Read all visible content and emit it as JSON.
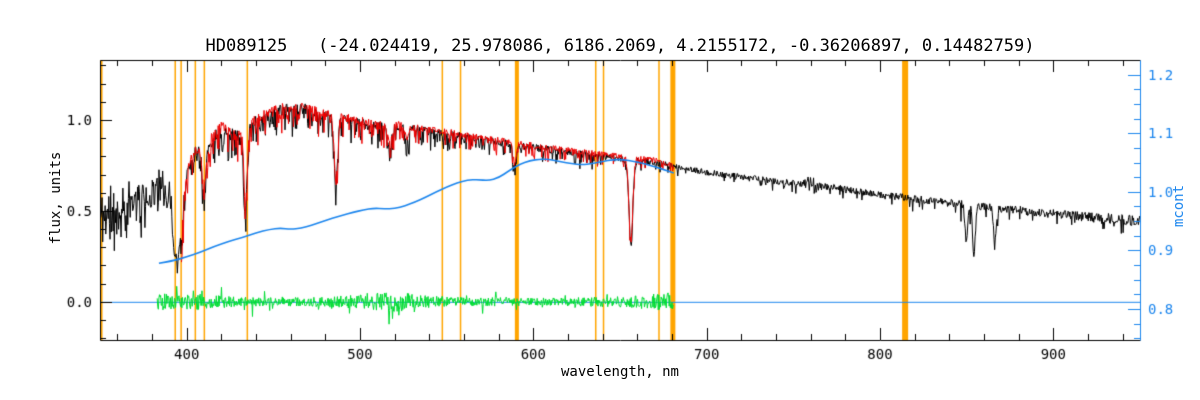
{
  "chart_data": {
    "type": "line",
    "title": "HD089125   (-24.024419, 25.978086, 6186.2069, 4.2155172, -0.36206897, 0.14482759)",
    "star_id": "HD089125",
    "params": [
      -24.024419,
      25.978086,
      6186.2069,
      4.2155172,
      -0.36206897,
      0.14482759
    ],
    "xlabel": "wavelength, nm",
    "ylabel_left": "flux, units",
    "ylabel_right": "mcont",
    "x_range": [
      350,
      950
    ],
    "y_left_range": [
      -0.21,
      1.33
    ],
    "y_right_range": [
      0.747,
      1.225
    ],
    "x_ticks": {
      "major": [
        400,
        500,
        600,
        700,
        800,
        900
      ],
      "labels": [
        "400",
        "500",
        "600",
        "700",
        "800",
        "900"
      ],
      "minor_step": 20
    },
    "y_left_ticks": {
      "major": [
        0.0,
        0.5,
        1.0
      ],
      "labels": [
        "0.0",
        "0.5",
        "1.0"
      ],
      "minor_step": 0.1
    },
    "y_right_ticks": {
      "major": [
        0.8,
        0.9,
        1.0,
        1.1,
        1.2
      ],
      "labels": [
        "0.8",
        "0.9",
        "1.0",
        "1.1",
        "1.2"
      ],
      "minor_step": 0.025
    },
    "legend": null,
    "grid": false,
    "colors": {
      "observed": "#000000",
      "fitted": "#ee0000",
      "mcont": "#1c86ee",
      "residual": "#00dd33",
      "marker": "#ffa500",
      "frame": "#000000",
      "background": "#ffffff"
    },
    "marker_lines": [
      {
        "nm": 350.6,
        "lw": 3
      },
      {
        "nm": 393.4,
        "lw": 1.5
      },
      {
        "nm": 396.8,
        "lw": 1.5
      },
      {
        "nm": 405.0,
        "lw": 1.5
      },
      {
        "nm": 410.2,
        "lw": 1.5
      },
      {
        "nm": 435.0,
        "lw": 1.5
      },
      {
        "nm": 547.5,
        "lw": 1.5
      },
      {
        "nm": 558.0,
        "lw": 1.5
      },
      {
        "nm": 590.5,
        "lw": 4
      },
      {
        "nm": 636.0,
        "lw": 1.5
      },
      {
        "nm": 640.5,
        "lw": 1.5
      },
      {
        "nm": 672.5,
        "lw": 1.5
      },
      {
        "nm": 680.5,
        "lw": 5
      },
      {
        "nm": 814.5,
        "lw": 6
      }
    ],
    "absorption_lines": [
      [
        393.4,
        0.3,
        1.3
      ],
      [
        396.8,
        0.25,
        1.2
      ],
      [
        410.2,
        0.2,
        1.0
      ],
      [
        434.0,
        0.4,
        1.0
      ],
      [
        486.1,
        0.37,
        1.0
      ],
      [
        517.2,
        0.1,
        1.2
      ],
      [
        527.0,
        0.07,
        1.0
      ],
      [
        589.3,
        0.12,
        0.9
      ],
      [
        656.3,
        0.46,
        1.1
      ],
      [
        849.8,
        0.2,
        0.8
      ],
      [
        854.2,
        0.27,
        0.8
      ],
      [
        866.2,
        0.18,
        0.8
      ]
    ],
    "series": {
      "observed": {
        "range": [
          350.5,
          950
        ],
        "envelope": [
          [
            351,
            0.46
          ],
          [
            356,
            0.49
          ],
          [
            362,
            0.52
          ],
          [
            368,
            0.54
          ],
          [
            374,
            0.56
          ],
          [
            380,
            0.6
          ],
          [
            384,
            0.64
          ],
          [
            388,
            0.63
          ],
          [
            391,
            0.58
          ],
          [
            394,
            0.52
          ],
          [
            397,
            0.56
          ],
          [
            400,
            0.7
          ],
          [
            403,
            0.8
          ],
          [
            406,
            0.82
          ],
          [
            409,
            0.8
          ],
          [
            412,
            0.85
          ],
          [
            416,
            0.91
          ],
          [
            420,
            0.95
          ],
          [
            424,
            0.93
          ],
          [
            428,
            0.91
          ],
          [
            432,
            0.92
          ],
          [
            436,
            0.96
          ],
          [
            440,
            0.99
          ],
          [
            445,
            1.02
          ],
          [
            450,
            1.04
          ],
          [
            456,
            1.06
          ],
          [
            462,
            1.05
          ],
          [
            468,
            1.06
          ],
          [
            474,
            1.04
          ],
          [
            480,
            1.02
          ],
          [
            486,
            1.01
          ],
          [
            492,
            1.0
          ],
          [
            498,
            0.99
          ],
          [
            504,
            0.975
          ],
          [
            510,
            0.965
          ],
          [
            516,
            0.955
          ],
          [
            522,
            0.96
          ],
          [
            528,
            0.955
          ],
          [
            534,
            0.945
          ],
          [
            540,
            0.935
          ],
          [
            546,
            0.927
          ],
          [
            552,
            0.92
          ],
          [
            558,
            0.91
          ],
          [
            564,
            0.9
          ],
          [
            570,
            0.89
          ],
          [
            576,
            0.882
          ],
          [
            582,
            0.875
          ],
          [
            588,
            0.862
          ],
          [
            594,
            0.856
          ],
          [
            600,
            0.848
          ],
          [
            606,
            0.84
          ],
          [
            612,
            0.833
          ],
          [
            618,
            0.824
          ],
          [
            624,
            0.816
          ],
          [
            630,
            0.81
          ],
          [
            636,
            0.803
          ],
          [
            642,
            0.797
          ],
          [
            648,
            0.79
          ],
          [
            654,
            0.78
          ],
          [
            660,
            0.778
          ],
          [
            666,
            0.772
          ],
          [
            672,
            0.762
          ],
          [
            678,
            0.75
          ],
          [
            684,
            0.738
          ],
          [
            690,
            0.727
          ],
          [
            698,
            0.714
          ],
          [
            706,
            0.703
          ],
          [
            714,
            0.694
          ],
          [
            722,
            0.684
          ],
          [
            730,
            0.674
          ],
          [
            738,
            0.664
          ],
          [
            746,
            0.655
          ],
          [
            752,
            0.649
          ],
          [
            757,
            0.652
          ],
          [
            762,
            0.638
          ],
          [
            768,
            0.633
          ],
          [
            774,
            0.627
          ],
          [
            780,
            0.618
          ],
          [
            788,
            0.607
          ],
          [
            796,
            0.596
          ],
          [
            804,
            0.586
          ],
          [
            812,
            0.576
          ],
          [
            820,
            0.566
          ],
          [
            828,
            0.557
          ],
          [
            836,
            0.548
          ],
          [
            844,
            0.54
          ],
          [
            852,
            0.532
          ],
          [
            860,
            0.524
          ],
          [
            868,
            0.516
          ],
          [
            876,
            0.508
          ],
          [
            884,
            0.5
          ],
          [
            892,
            0.492
          ],
          [
            900,
            0.484
          ],
          [
            908,
            0.477
          ],
          [
            916,
            0.47
          ],
          [
            924,
            0.464
          ],
          [
            932,
            0.458
          ],
          [
            940,
            0.452
          ],
          [
            950,
            0.446
          ]
        ]
      },
      "fitted": {
        "range": [
          397,
          681
        ],
        "offset": 0.012,
        "amp_scale": 0.8
      },
      "mcont": {
        "points": [
          [
            384,
            0.878
          ],
          [
            392,
            0.882
          ],
          [
            400,
            0.889
          ],
          [
            408,
            0.897
          ],
          [
            416,
            0.907
          ],
          [
            424,
            0.915
          ],
          [
            432,
            0.922
          ],
          [
            440,
            0.93
          ],
          [
            448,
            0.936
          ],
          [
            454,
            0.938
          ],
          [
            460,
            0.936
          ],
          [
            466,
            0.938
          ],
          [
            472,
            0.943
          ],
          [
            478,
            0.949
          ],
          [
            484,
            0.955
          ],
          [
            490,
            0.96
          ],
          [
            496,
            0.965
          ],
          [
            502,
            0.969
          ],
          [
            508,
            0.972
          ],
          [
            514,
            0.971
          ],
          [
            520,
            0.971
          ],
          [
            526,
            0.976
          ],
          [
            532,
            0.983
          ],
          [
            538,
            0.991
          ],
          [
            544,
            1.0
          ],
          [
            550,
            1.008
          ],
          [
            556,
            1.015
          ],
          [
            562,
            1.02
          ],
          [
            568,
            1.021
          ],
          [
            574,
            1.019
          ],
          [
            580,
            1.024
          ],
          [
            586,
            1.036
          ],
          [
            592,
            1.047
          ],
          [
            598,
            1.053
          ],
          [
            604,
            1.056
          ],
          [
            610,
            1.055
          ],
          [
            616,
            1.051
          ],
          [
            622,
            1.048
          ],
          [
            628,
            1.046
          ],
          [
            634,
            1.048
          ],
          [
            640,
            1.052
          ],
          [
            646,
            1.055
          ],
          [
            652,
            1.055
          ],
          [
            658,
            1.052
          ],
          [
            664,
            1.048
          ],
          [
            670,
            1.043
          ],
          [
            676,
            1.037
          ],
          [
            681,
            1.032
          ]
        ]
      },
      "residual": {
        "range": [
          383,
          681
        ],
        "seed": 5,
        "spike_prob": 0.05,
        "spike_scale": 1.8,
        "amp_profile": [
          [
            383,
            0.05
          ],
          [
            395,
            0.035
          ],
          [
            403,
            0.05
          ],
          [
            412,
            0.04
          ],
          [
            425,
            0.03
          ],
          [
            445,
            0.026
          ],
          [
            465,
            0.026
          ],
          [
            485,
            0.03
          ],
          [
            500,
            0.04
          ],
          [
            512,
            0.05
          ],
          [
            522,
            0.055
          ],
          [
            532,
            0.04
          ],
          [
            550,
            0.03
          ],
          [
            575,
            0.024
          ],
          [
            600,
            0.022
          ],
          [
            625,
            0.024
          ],
          [
            650,
            0.03
          ],
          [
            665,
            0.04
          ],
          [
            675,
            0.05
          ],
          [
            681,
            0.05
          ]
        ]
      },
      "zero_line": {
        "flux": 0.0,
        "range": [
          350,
          950
        ]
      }
    },
    "noise": {
      "seed_observed": 11,
      "seed_fitted": 77,
      "amp_profile": [
        [
          351,
          0.16
        ],
        [
          360,
          0.15
        ],
        [
          370,
          0.13
        ],
        [
          378,
          0.11
        ],
        [
          385,
          0.09
        ],
        [
          392,
          0.07
        ],
        [
          398,
          0.055
        ],
        [
          405,
          0.045
        ],
        [
          415,
          0.04
        ],
        [
          430,
          0.035
        ],
        [
          450,
          0.032
        ],
        [
          480,
          0.03
        ],
        [
          510,
          0.027
        ],
        [
          545,
          0.023
        ],
        [
          580,
          0.021
        ],
        [
          620,
          0.02
        ],
        [
          660,
          0.019
        ],
        [
          680,
          0.018
        ],
        [
          700,
          0.018
        ],
        [
          730,
          0.018
        ],
        [
          756,
          0.02
        ],
        [
          760,
          0.055
        ],
        [
          766,
          0.02
        ],
        [
          790,
          0.019
        ],
        [
          820,
          0.02
        ],
        [
          850,
          0.022
        ],
        [
          880,
          0.024
        ],
        [
          910,
          0.026
        ],
        [
          930,
          0.028
        ],
        [
          950,
          0.03
        ]
      ],
      "spike_prob": [
        [
          351,
          0.1
        ],
        [
          390,
          0.22
        ],
        [
          400,
          0.3
        ],
        [
          460,
          0.3
        ],
        [
          520,
          0.26
        ],
        [
          560,
          0.22
        ],
        [
          600,
          0.18
        ],
        [
          650,
          0.15
        ],
        [
          680,
          0.1
        ],
        [
          700,
          0.06
        ],
        [
          760,
          0.08
        ],
        [
          800,
          0.05
        ],
        [
          835,
          0.07
        ],
        [
          848,
          0.12
        ],
        [
          860,
          0.12
        ],
        [
          875,
          0.07
        ],
        [
          895,
          0.08
        ],
        [
          915,
          0.1
        ],
        [
          950,
          0.12
        ]
      ],
      "spike_depth": [
        [
          351,
          0.08
        ],
        [
          395,
          0.12
        ],
        [
          420,
          0.14
        ],
        [
          470,
          0.12
        ],
        [
          520,
          0.1
        ],
        [
          560,
          0.085
        ],
        [
          600,
          0.075
        ],
        [
          650,
          0.065
        ],
        [
          680,
          0.055
        ],
        [
          700,
          0.04
        ],
        [
          760,
          0.05
        ],
        [
          800,
          0.04
        ],
        [
          840,
          0.1
        ],
        [
          855,
          0.14
        ],
        [
          870,
          0.08
        ],
        [
          900,
          0.05
        ],
        [
          950,
          0.06
        ]
      ]
    }
  }
}
